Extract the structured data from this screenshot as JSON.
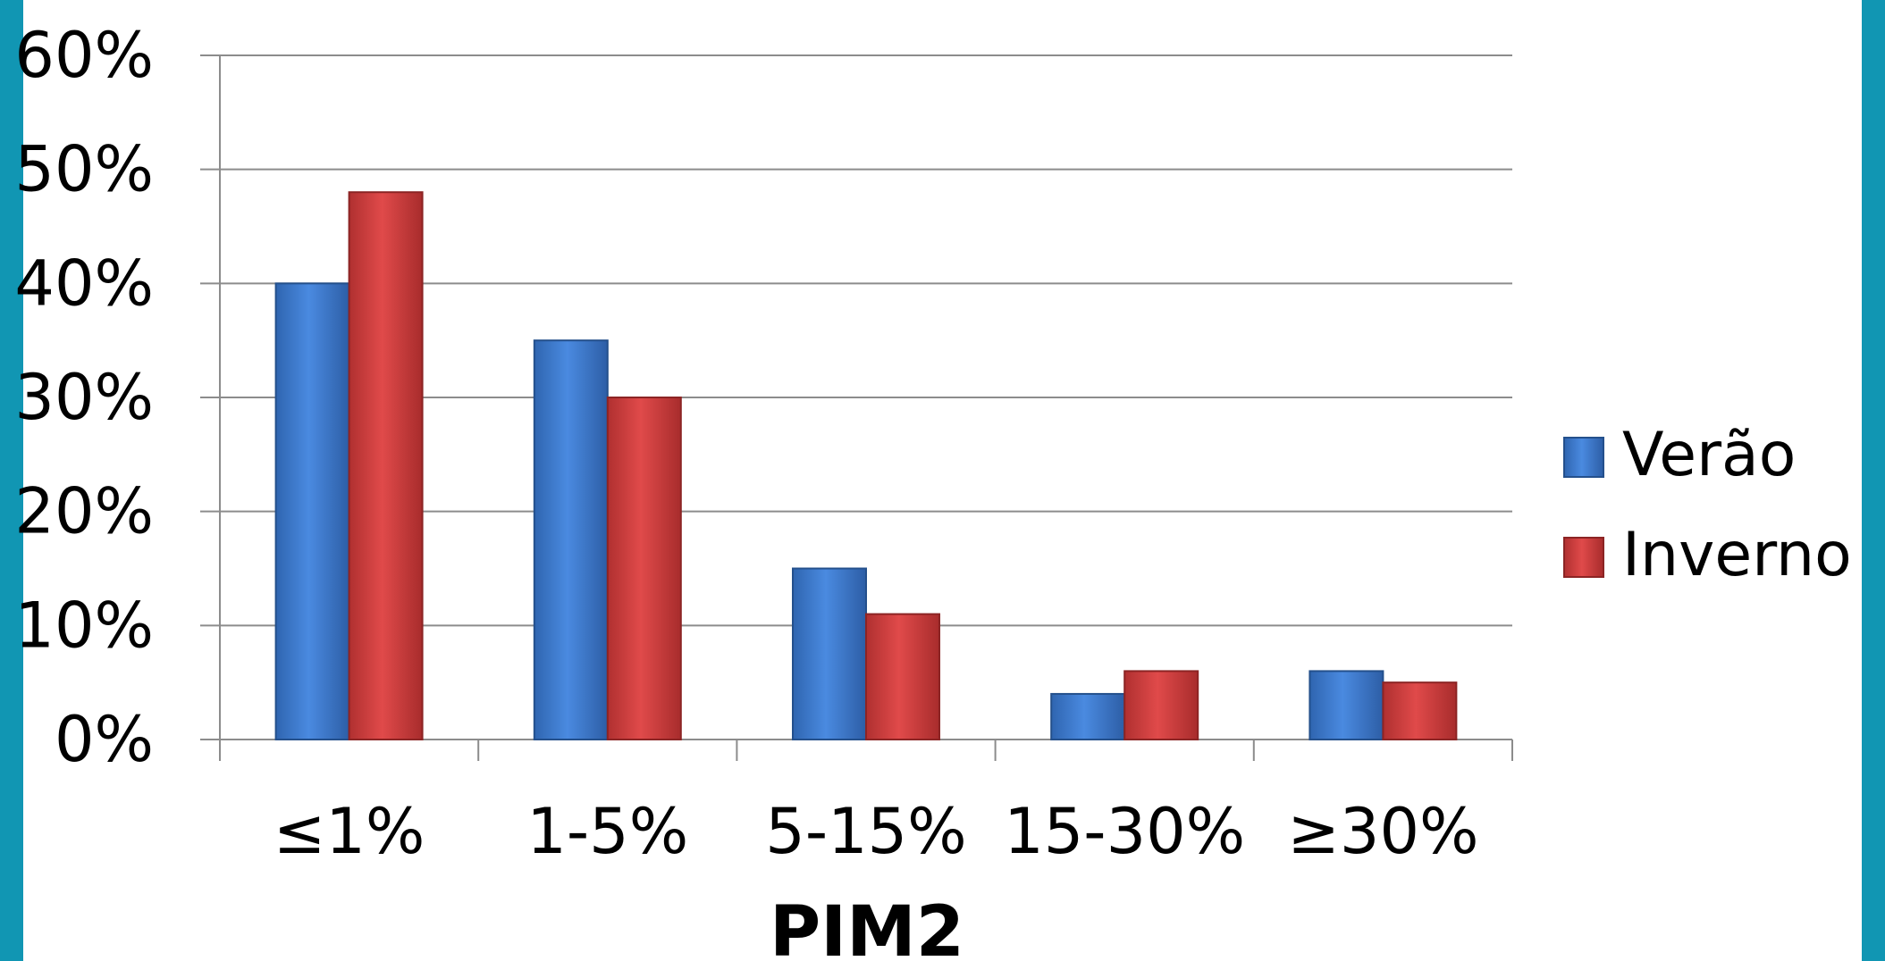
{
  "chart_data": {
    "type": "bar",
    "title": "",
    "xlabel": "PIM2",
    "ylabel": "",
    "categories": [
      "≤1%",
      "1-5%",
      "5-15%",
      "15-30%",
      "≥30%"
    ],
    "series": [
      {
        "name": "Verão",
        "values": [
          40,
          35,
          15,
          4,
          6
        ],
        "color": "#3f7fcf"
      },
      {
        "name": "Inverno",
        "values": [
          48,
          30,
          11,
          6,
          5
        ],
        "color": "#d24040"
      }
    ],
    "ylim": [
      0,
      60
    ],
    "yticks": [
      "0%",
      "10%",
      "20%",
      "30%",
      "40%",
      "50%",
      "60%"
    ],
    "ytick_values": [
      0,
      10,
      20,
      30,
      40,
      50,
      60
    ],
    "grid": true,
    "legend_position": "right",
    "frame_color": "#1196b3"
  }
}
